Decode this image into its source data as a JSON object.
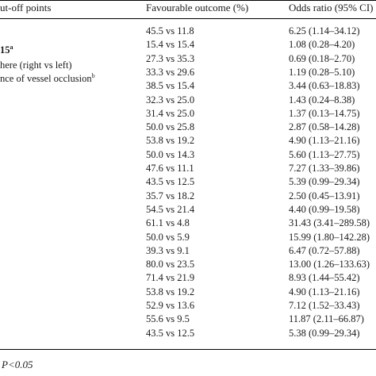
{
  "header": {
    "col1": "ut-off points",
    "col2": "Favourable outcome (%)",
    "col3": "Odds ratio (95% CI)"
  },
  "labels": [
    {
      "text": "15",
      "sup": "a"
    },
    {
      "text": "here (right vs left)",
      "sup": ""
    },
    {
      "text": "nce of vessel occlusion",
      "sup": "b"
    }
  ],
  "rows": [
    {
      "outcome": "45.5 vs 11.8",
      "odds": "6.25 (1.14–34.12)"
    },
    {
      "outcome": "15.4 vs 15.4",
      "odds": "1.08 (0.28–4.20)"
    },
    {
      "outcome": "27.3 vs 35.3",
      "odds": "0.69 (0.18–2.70)"
    },
    {
      "outcome": "33.3 vs 29.6",
      "odds": "1.19 (0.28–5.10)"
    },
    {
      "outcome": "38.5 vs 15.4",
      "odds": "3.44 (0.63–18.83)"
    },
    {
      "outcome": "32.3 vs 25.0",
      "odds": "1.43 (0.24–8.38)"
    },
    {
      "outcome": "31.4 vs 25.0",
      "odds": "1.37 (0.13–14.75)"
    },
    {
      "outcome": "50.0 vs 25.8",
      "odds": "2.87 (0.58–14.28)"
    },
    {
      "outcome": "53.8 vs 19.2",
      "odds": "4.90 (1.13–21.16)"
    },
    {
      "outcome": "50.0 vs 14.3",
      "odds": "5.60 (1.13–27.75)"
    },
    {
      "outcome": "47.6 vs 11.1",
      "odds": "7.27 (1.33–39.86)"
    },
    {
      "outcome": "43.5 vs 12.5",
      "odds": "5.39 (0.99–29.34)"
    },
    {
      "outcome": "35.7 vs 18.2",
      "odds": "2.50 (0.45–13.91)"
    },
    {
      "outcome": "54.5 vs 21.4",
      "odds": "4.40 (0.99–19.58)"
    },
    {
      "outcome": "61.1 vs 4.8",
      "odds": "31.43 (3.41–289.58)"
    },
    {
      "outcome": "50.0 vs 5.9",
      "odds": "15.99 (1.80–142.28)"
    },
    {
      "outcome": "39.3 vs 9.1",
      "odds": "6.47 (0.72–57.88)"
    },
    {
      "outcome": "80.0 vs 23.5",
      "odds": "13.00 (1.26–133.63)"
    },
    {
      "outcome": "71.4 vs 21.9",
      "odds": "8.93 (1.44–55.42)"
    },
    {
      "outcome": "53.8 vs 19.2",
      "odds": "4.90 (1.13–21.16)"
    },
    {
      "outcome": "52.9 vs 13.6",
      "odds": "7.12 (1.52–33.43)"
    },
    {
      "outcome": "55.6 vs 9.5",
      "odds": "11.87 (2.11–66.87)"
    },
    {
      "outcome": "43.5 vs 12.5",
      "odds": "5.38 (0.99–29.34)"
    }
  ],
  "footnote": "P<0.05"
}
